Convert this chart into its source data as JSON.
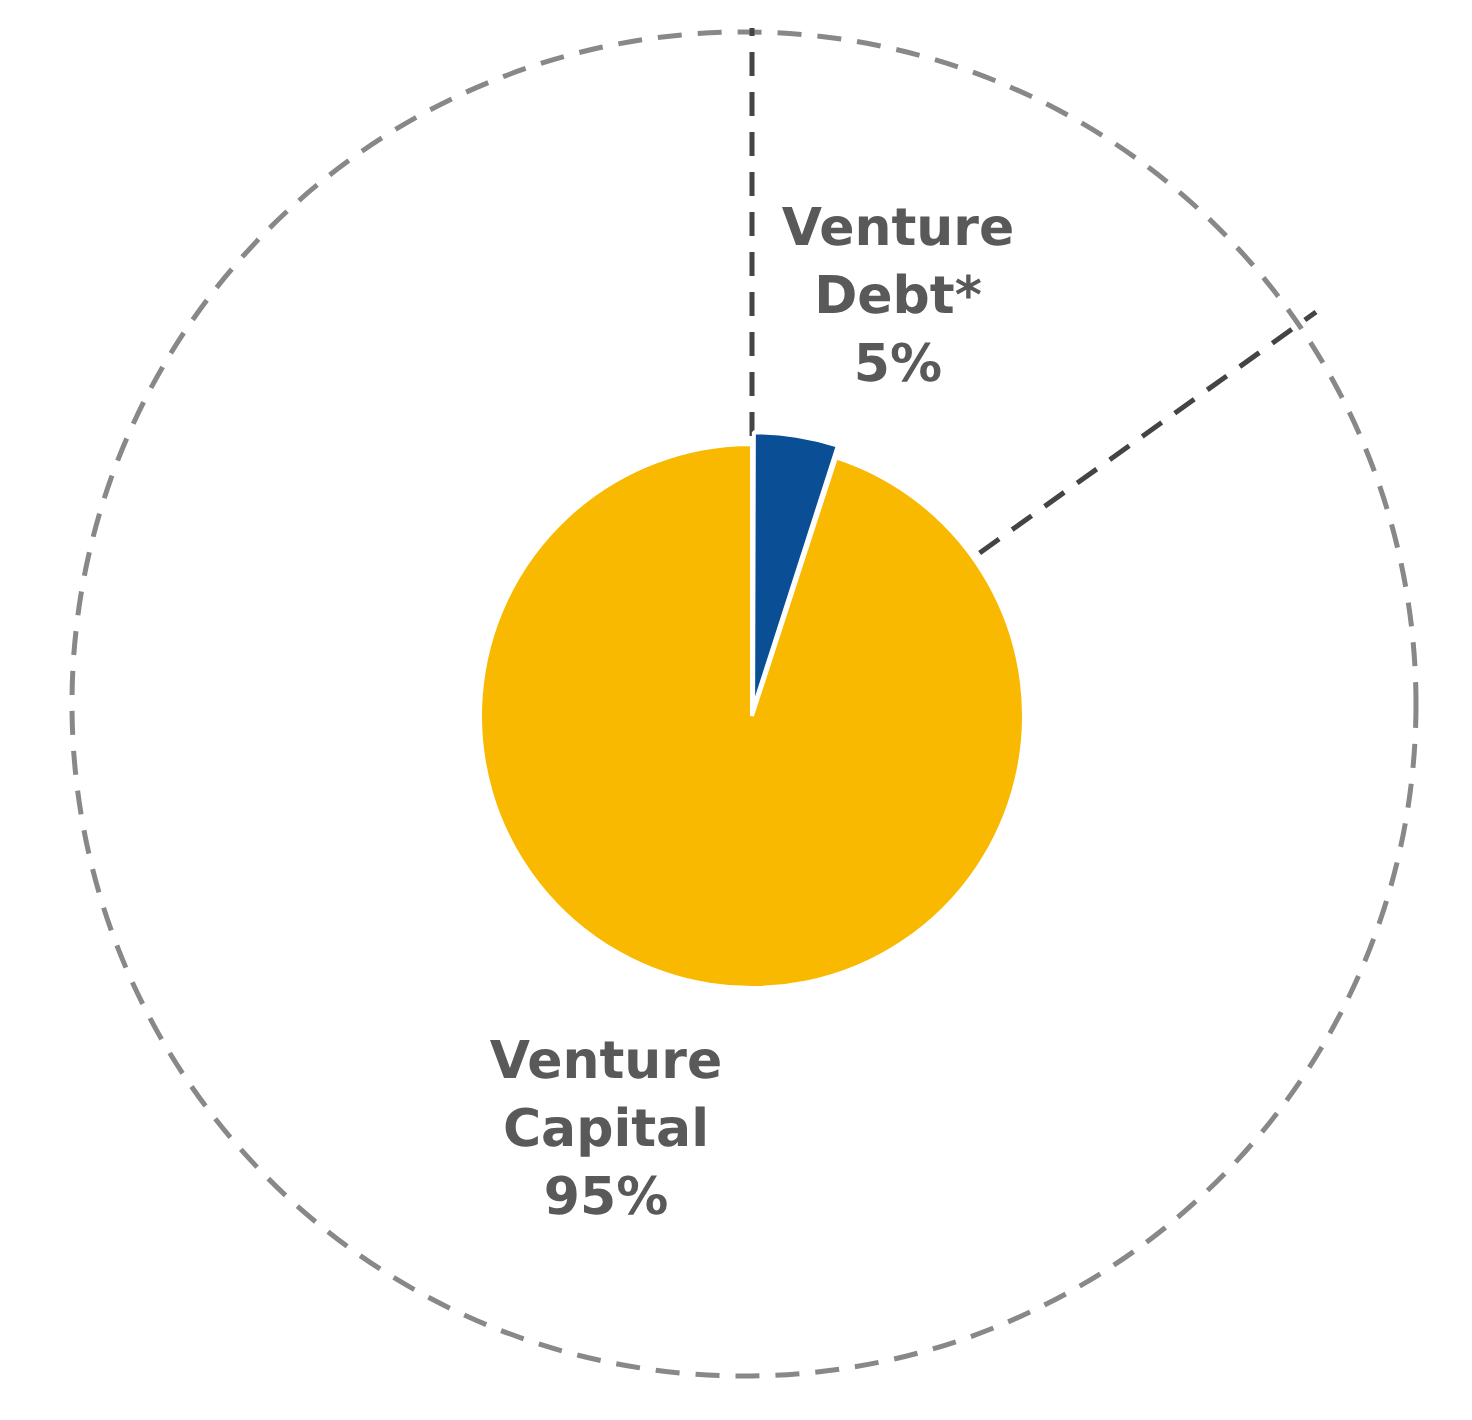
{
  "chart_data": {
    "type": "pie",
    "categories": [
      "Venture Debt*",
      "Venture Capital"
    ],
    "values": [
      5,
      95
    ],
    "colors": [
      "#0a4f96",
      "#f9b900"
    ],
    "value_labels": [
      "5%",
      "95%"
    ],
    "legend": false
  }
}
